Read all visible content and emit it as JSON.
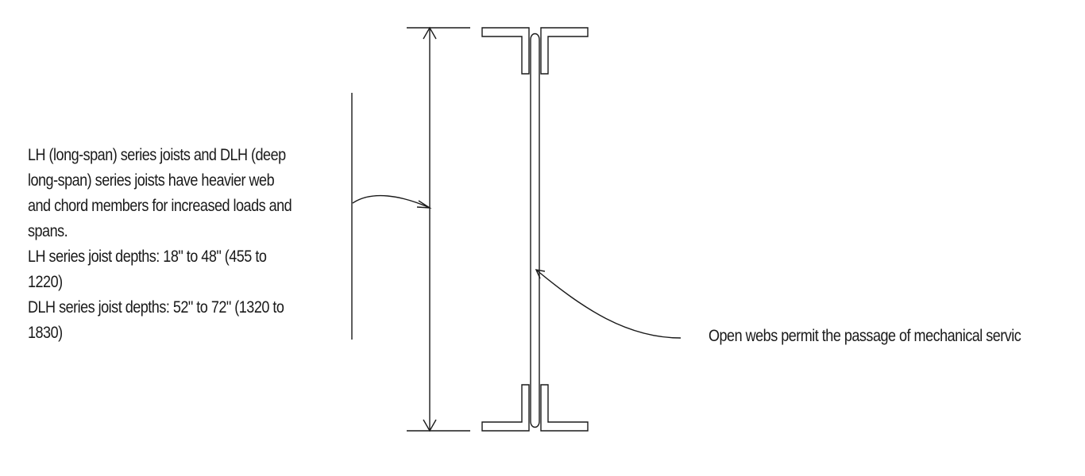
{
  "left_annotation": {
    "lines": [
      "LH (long-span) series joists and DLH (deep",
      "long-span) series joists have heavier web",
      "and chord members for increased loads and",
      "spans.",
      "LH series joist depths: 18\" to 48\" (455 to",
      "1220)",
      "DLH series joist depths: 52\" to 72\" (1320 to",
      "1830)"
    ]
  },
  "right_annotation": {
    "text": "Open webs permit the passage of mechanical servic"
  },
  "colors": {
    "line": "#1a1a1a",
    "background": "#ffffff"
  }
}
